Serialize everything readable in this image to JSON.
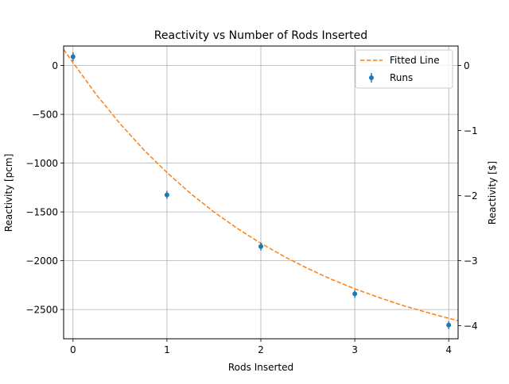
{
  "chart_data": {
    "type": "scatter",
    "title": "Reactivity vs Number of Rods Inserted",
    "xlabel": "Rods Inserted",
    "ylabel": "Reactivity [pcm]",
    "ylabel_right": "Reactivity [$]",
    "xlim": [
      -0.1,
      4.1
    ],
    "ylim": [
      -2800,
      200
    ],
    "ylim_right": [
      -4.2,
      0.3
    ],
    "grid": true,
    "legend_position": "top-right",
    "x_ticks": [
      0,
      1,
      2,
      3,
      4
    ],
    "x_tick_labels": [
      "0",
      "1",
      "2",
      "3",
      "4"
    ],
    "y_ticks": [
      0,
      -500,
      -1000,
      -1500,
      -2000,
      -2500
    ],
    "y_tick_labels": [
      "0",
      "−500",
      "−1000",
      "−1500",
      "−2000",
      "−2500"
    ],
    "y_right_ticks": [
      0,
      -1,
      -2,
      -3,
      -4
    ],
    "y_right_tick_labels": [
      "0",
      "−1",
      "−2",
      "−3",
      "−4"
    ],
    "series": [
      {
        "name": "Runs",
        "kind": "errorbar",
        "color": "#1f77b4",
        "x": [
          0,
          1,
          2,
          3,
          4
        ],
        "y": [
          90,
          -1325,
          -1855,
          -2340,
          -2660
        ],
        "yerr": [
          45,
          40,
          40,
          40,
          40
        ]
      },
      {
        "name": "Fitted Line",
        "kind": "dashed-line",
        "color": "#ff7f0e",
        "x": [
          -0.1,
          0,
          0.25,
          0.5,
          0.75,
          1,
          1.25,
          1.5,
          1.75,
          2,
          2.25,
          2.5,
          2.75,
          3,
          3.25,
          3.5,
          3.75,
          4,
          4.1
        ],
        "y": [
          165,
          30,
          -300,
          -595,
          -860,
          -1097,
          -1310,
          -1500,
          -1670,
          -1822,
          -1958,
          -2080,
          -2190,
          -2288,
          -2375,
          -2455,
          -2525,
          -2590,
          -2615
        ]
      }
    ]
  }
}
